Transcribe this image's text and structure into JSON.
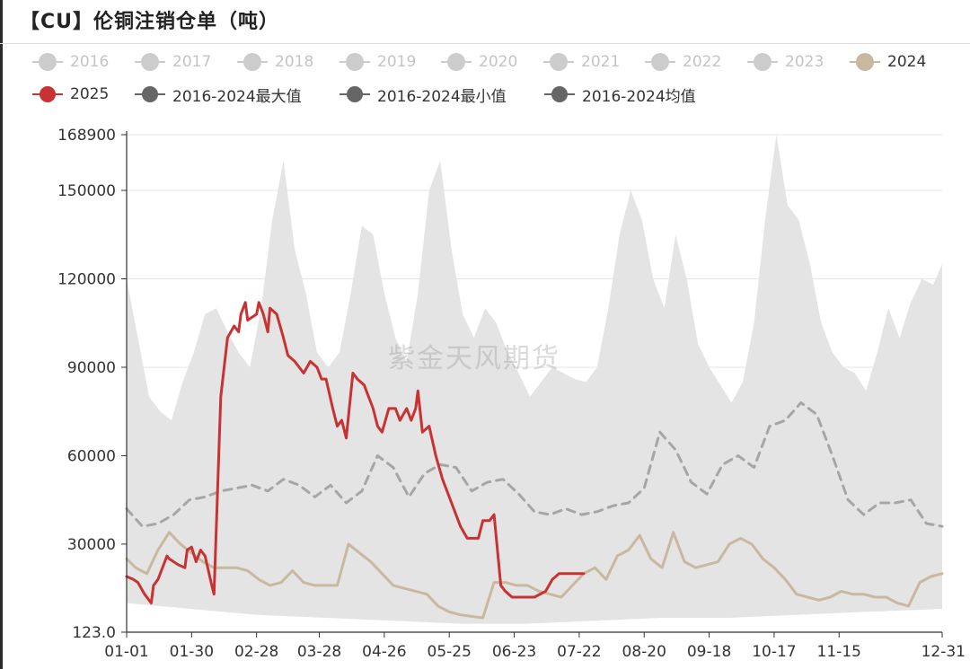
{
  "title": "【CU】伦铜注销仓单（吨）",
  "watermark": "紫金天风期货",
  "legend": [
    {
      "label": "2016",
      "active": false,
      "color": "#cccccc",
      "style": "dot"
    },
    {
      "label": "2017",
      "active": false,
      "color": "#cccccc",
      "style": "dot"
    },
    {
      "label": "2018",
      "active": false,
      "color": "#cccccc",
      "style": "dot"
    },
    {
      "label": "2019",
      "active": false,
      "color": "#cccccc",
      "style": "dot"
    },
    {
      "label": "2020",
      "active": false,
      "color": "#cccccc",
      "style": "dot"
    },
    {
      "label": "2021",
      "active": false,
      "color": "#cccccc",
      "style": "dot"
    },
    {
      "label": "2022",
      "active": false,
      "color": "#cccccc",
      "style": "dot"
    },
    {
      "label": "2023",
      "active": false,
      "color": "#cccccc",
      "style": "dot"
    },
    {
      "label": "2024",
      "active": true,
      "color": "#c9b8a0",
      "style": "dot"
    },
    {
      "label": "2025",
      "active": true,
      "color": "#c83232",
      "style": "line-dot"
    },
    {
      "label": "2016-2024最大值",
      "active": true,
      "color": "#666666",
      "style": "line-dot"
    },
    {
      "label": "2016-2024最小值",
      "active": true,
      "color": "#666666",
      "style": "line-dot"
    },
    {
      "label": "2016-2024均值",
      "active": true,
      "color": "#666666",
      "style": "line-dot"
    }
  ],
  "chart_data": {
    "type": "area",
    "title": "【CU】伦铜注销仓单（吨）",
    "xlabel": "",
    "ylabel": "",
    "x_range": [
      1,
      365
    ],
    "ylim": [
      123.0,
      168900
    ],
    "y_ticks": [
      123.0,
      30000,
      60000,
      90000,
      120000,
      150000,
      168900
    ],
    "y_tick_labels": [
      "123.0",
      "30000",
      "60000",
      "90000",
      "120000",
      "150000",
      "168900"
    ],
    "x_ticks": [
      1,
      30,
      59,
      87,
      116,
      145,
      174,
      203,
      232,
      261,
      290,
      319,
      365
    ],
    "x_tick_labels": [
      "01-01",
      "01-30",
      "02-28",
      "03-28",
      "04-26",
      "05-25",
      "06-23",
      "07-22",
      "08-20",
      "09-18",
      "10-17",
      "11-15",
      "12-31"
    ],
    "grid": true,
    "colors": {
      "band": "#e4e4e4",
      "mean": "#a6a6a6",
      "y2024": "#c9b8a0",
      "y2025": "#c83232"
    },
    "band_max": {
      "name": "2016-2024最大值",
      "x": [
        1,
        6,
        11,
        16,
        21,
        26,
        31,
        36,
        41,
        46,
        51,
        56,
        61,
        66,
        71,
        76,
        81,
        86,
        91,
        96,
        101,
        106,
        111,
        116,
        121,
        126,
        131,
        136,
        141,
        146,
        151,
        156,
        161,
        166,
        171,
        176,
        181,
        186,
        191,
        196,
        201,
        206,
        211,
        216,
        221,
        226,
        231,
        236,
        241,
        246,
        251,
        256,
        261,
        266,
        271,
        276,
        281,
        286,
        291,
        296,
        301,
        306,
        311,
        316,
        321,
        326,
        331,
        336,
        341,
        346,
        351,
        356,
        361,
        365
      ],
      "values": [
        120000,
        100000,
        80000,
        75000,
        72000,
        85000,
        95000,
        108000,
        110000,
        102000,
        95000,
        90000,
        110000,
        140000,
        160000,
        130000,
        115000,
        95000,
        90000,
        95000,
        115000,
        138000,
        135000,
        115000,
        100000,
        92000,
        115000,
        150000,
        160000,
        130000,
        108000,
        100000,
        110000,
        105000,
        95000,
        88000,
        80000,
        85000,
        90000,
        88000,
        86000,
        85000,
        90000,
        110000,
        135000,
        150000,
        140000,
        120000,
        110000,
        135000,
        120000,
        98000,
        90000,
        84000,
        78000,
        85000,
        105000,
        140000,
        168900,
        145000,
        140000,
        125000,
        105000,
        95000,
        90000,
        88000,
        82000,
        95000,
        110000,
        100000,
        112000,
        120000,
        118000,
        125000
      ]
    },
    "band_min": {
      "name": "2016-2024最小值",
      "x": [
        1,
        30,
        59,
        90,
        120,
        150,
        180,
        210,
        240,
        270,
        300,
        330,
        365
      ],
      "values": [
        10000,
        8000,
        6000,
        5000,
        4000,
        3000,
        3000,
        4000,
        5000,
        5000,
        6000,
        7000,
        8000
      ]
    },
    "series": [
      {
        "name": "2016-2024均值",
        "style": "dashed",
        "x": [
          1,
          8,
          15,
          22,
          29,
          36,
          43,
          50,
          57,
          64,
          71,
          78,
          85,
          92,
          99,
          106,
          113,
          120,
          127,
          134,
          141,
          148,
          155,
          162,
          169,
          176,
          183,
          190,
          197,
          204,
          211,
          218,
          225,
          232,
          239,
          246,
          253,
          260,
          267,
          274,
          281,
          288,
          295,
          302,
          309,
          316,
          323,
          330,
          337,
          344,
          351,
          358,
          365
        ],
        "values": [
          42000,
          36000,
          37000,
          40000,
          45000,
          46000,
          48000,
          49000,
          50000,
          48000,
          52000,
          50000,
          46000,
          50000,
          44000,
          48000,
          60000,
          56000,
          46000,
          54000,
          57000,
          56000,
          48000,
          51000,
          52000,
          47000,
          41000,
          40000,
          42000,
          40000,
          41000,
          43000,
          44000,
          49000,
          68000,
          62000,
          51000,
          47000,
          57000,
          60000,
          56000,
          70000,
          72000,
          78000,
          74000,
          60000,
          45000,
          40000,
          44000,
          44000,
          45000,
          37000,
          36000
        ]
      },
      {
        "name": "2024",
        "style": "solid",
        "x": [
          1,
          5,
          10,
          15,
          20,
          25,
          30,
          35,
          40,
          45,
          50,
          55,
          60,
          65,
          70,
          75,
          80,
          85,
          90,
          95,
          100,
          105,
          110,
          115,
          120,
          125,
          130,
          135,
          140,
          145,
          150,
          155,
          160,
          165,
          170,
          175,
          180,
          185,
          190,
          195,
          200,
          205,
          210,
          215,
          220,
          225,
          230,
          235,
          240,
          245,
          250,
          255,
          260,
          265,
          270,
          275,
          280,
          285,
          290,
          295,
          300,
          305,
          310,
          315,
          320,
          325,
          330,
          335,
          340,
          345,
          350,
          355,
          360,
          365
        ],
        "values": [
          25000,
          22000,
          20000,
          28000,
          34000,
          30000,
          27000,
          24000,
          22000,
          22000,
          22000,
          21000,
          18000,
          16000,
          17000,
          21000,
          17000,
          16000,
          16000,
          16000,
          30000,
          27000,
          24000,
          20000,
          16000,
          15000,
          14000,
          13000,
          9000,
          7000,
          6000,
          5500,
          5000,
          17000,
          17000,
          16000,
          16000,
          14000,
          13000,
          12000,
          16000,
          20000,
          22000,
          18000,
          26000,
          28000,
          33000,
          25000,
          22000,
          34000,
          24000,
          22000,
          23000,
          24000,
          30000,
          32000,
          30000,
          25000,
          22000,
          18000,
          13000,
          12000,
          11000,
          12000,
          14000,
          13000,
          13000,
          12000,
          12000,
          10000,
          9000,
          17000,
          19000,
          20000
        ]
      },
      {
        "name": "2025",
        "style": "solid",
        "x": [
          1,
          4,
          6,
          9,
          12,
          13,
          15,
          19,
          20,
          24,
          27,
          28,
          30,
          32,
          34,
          36,
          39,
          40,
          43,
          46,
          49,
          51,
          52,
          54,
          55,
          59,
          60,
          62,
          64,
          65,
          68,
          71,
          73,
          76,
          80,
          83,
          86,
          88,
          90,
          93,
          95,
          97,
          99,
          102,
          104,
          107,
          109,
          111,
          113,
          115,
          118,
          121,
          123,
          126,
          128,
          130,
          131,
          133,
          136,
          139,
          142,
          145,
          148,
          150,
          153,
          156,
          158,
          160,
          163,
          165,
          168,
          170,
          173,
          177,
          180,
          183,
          188,
          191,
          194,
          195,
          197,
          199,
          203,
          205
        ],
        "values": [
          19000,
          18000,
          17000,
          13000,
          10000,
          16000,
          18000,
          26000,
          25000,
          23000,
          22000,
          28000,
          29000,
          24000,
          28000,
          26000,
          16000,
          13000,
          80000,
          100000,
          104000,
          102000,
          108000,
          112000,
          106000,
          108000,
          112000,
          108000,
          102000,
          110000,
          108000,
          100000,
          94000,
          92000,
          88000,
          92000,
          90000,
          86000,
          86000,
          76000,
          70000,
          72000,
          66000,
          88000,
          86000,
          84000,
          80000,
          76000,
          70000,
          68000,
          76000,
          76000,
          72000,
          76000,
          72000,
          76000,
          82000,
          68000,
          70000,
          60000,
          52000,
          46000,
          40000,
          36000,
          32000,
          32000,
          32000,
          38000,
          38000,
          40000,
          16000,
          14000,
          12000,
          12000,
          12000,
          12000,
          14000,
          18000,
          20000,
          20000,
          20000,
          20000,
          20000,
          20000
        ]
      }
    ]
  }
}
